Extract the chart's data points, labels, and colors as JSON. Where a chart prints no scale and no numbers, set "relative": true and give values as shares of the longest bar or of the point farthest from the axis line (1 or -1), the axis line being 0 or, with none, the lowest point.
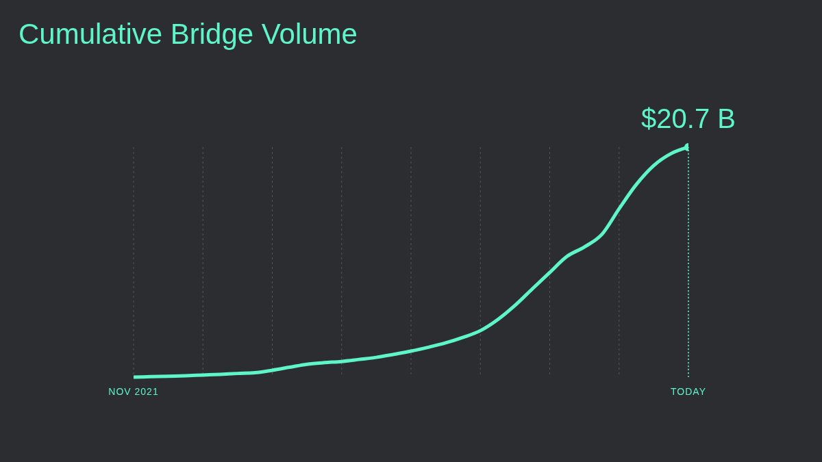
{
  "chart_data": {
    "type": "line",
    "title": "Cumulative Bridge Volume",
    "relative": true,
    "categories": [
      "NOV 2021",
      null,
      null,
      null,
      null,
      null,
      null,
      null,
      null,
      null,
      null,
      null,
      null,
      null,
      null,
      null,
      null,
      null,
      null,
      null,
      null,
      null,
      null,
      null,
      null,
      null,
      null,
      null,
      null,
      null,
      null,
      null,
      "TODAY"
    ],
    "series": [
      {
        "color": "#5ef5c8",
        "values": [
          0,
          0.002,
          0.004,
          0.006,
          0.009,
          0.012,
          0.016,
          0.019,
          0.03,
          0.043,
          0.056,
          0.063,
          0.068,
          0.077,
          0.086,
          0.099,
          0.113,
          0.13,
          0.149,
          0.173,
          0.202,
          0.25,
          0.312,
          0.384,
          0.455,
          0.525,
          0.566,
          0.62,
          0.732,
          0.838,
          0.92,
          0.972,
          1
        ]
      }
    ],
    "annotations": [
      {
        "text": "$20.7 B",
        "x": "TODAY",
        "y": 1
      }
    ],
    "grid": "x",
    "marker": "none",
    "line_style": "solid",
    "ref_lines": [
      {
        "axis": "x",
        "value": "TODAY",
        "color": "#5ef5c8",
        "line_style": "dotted"
      }
    ]
  }
}
